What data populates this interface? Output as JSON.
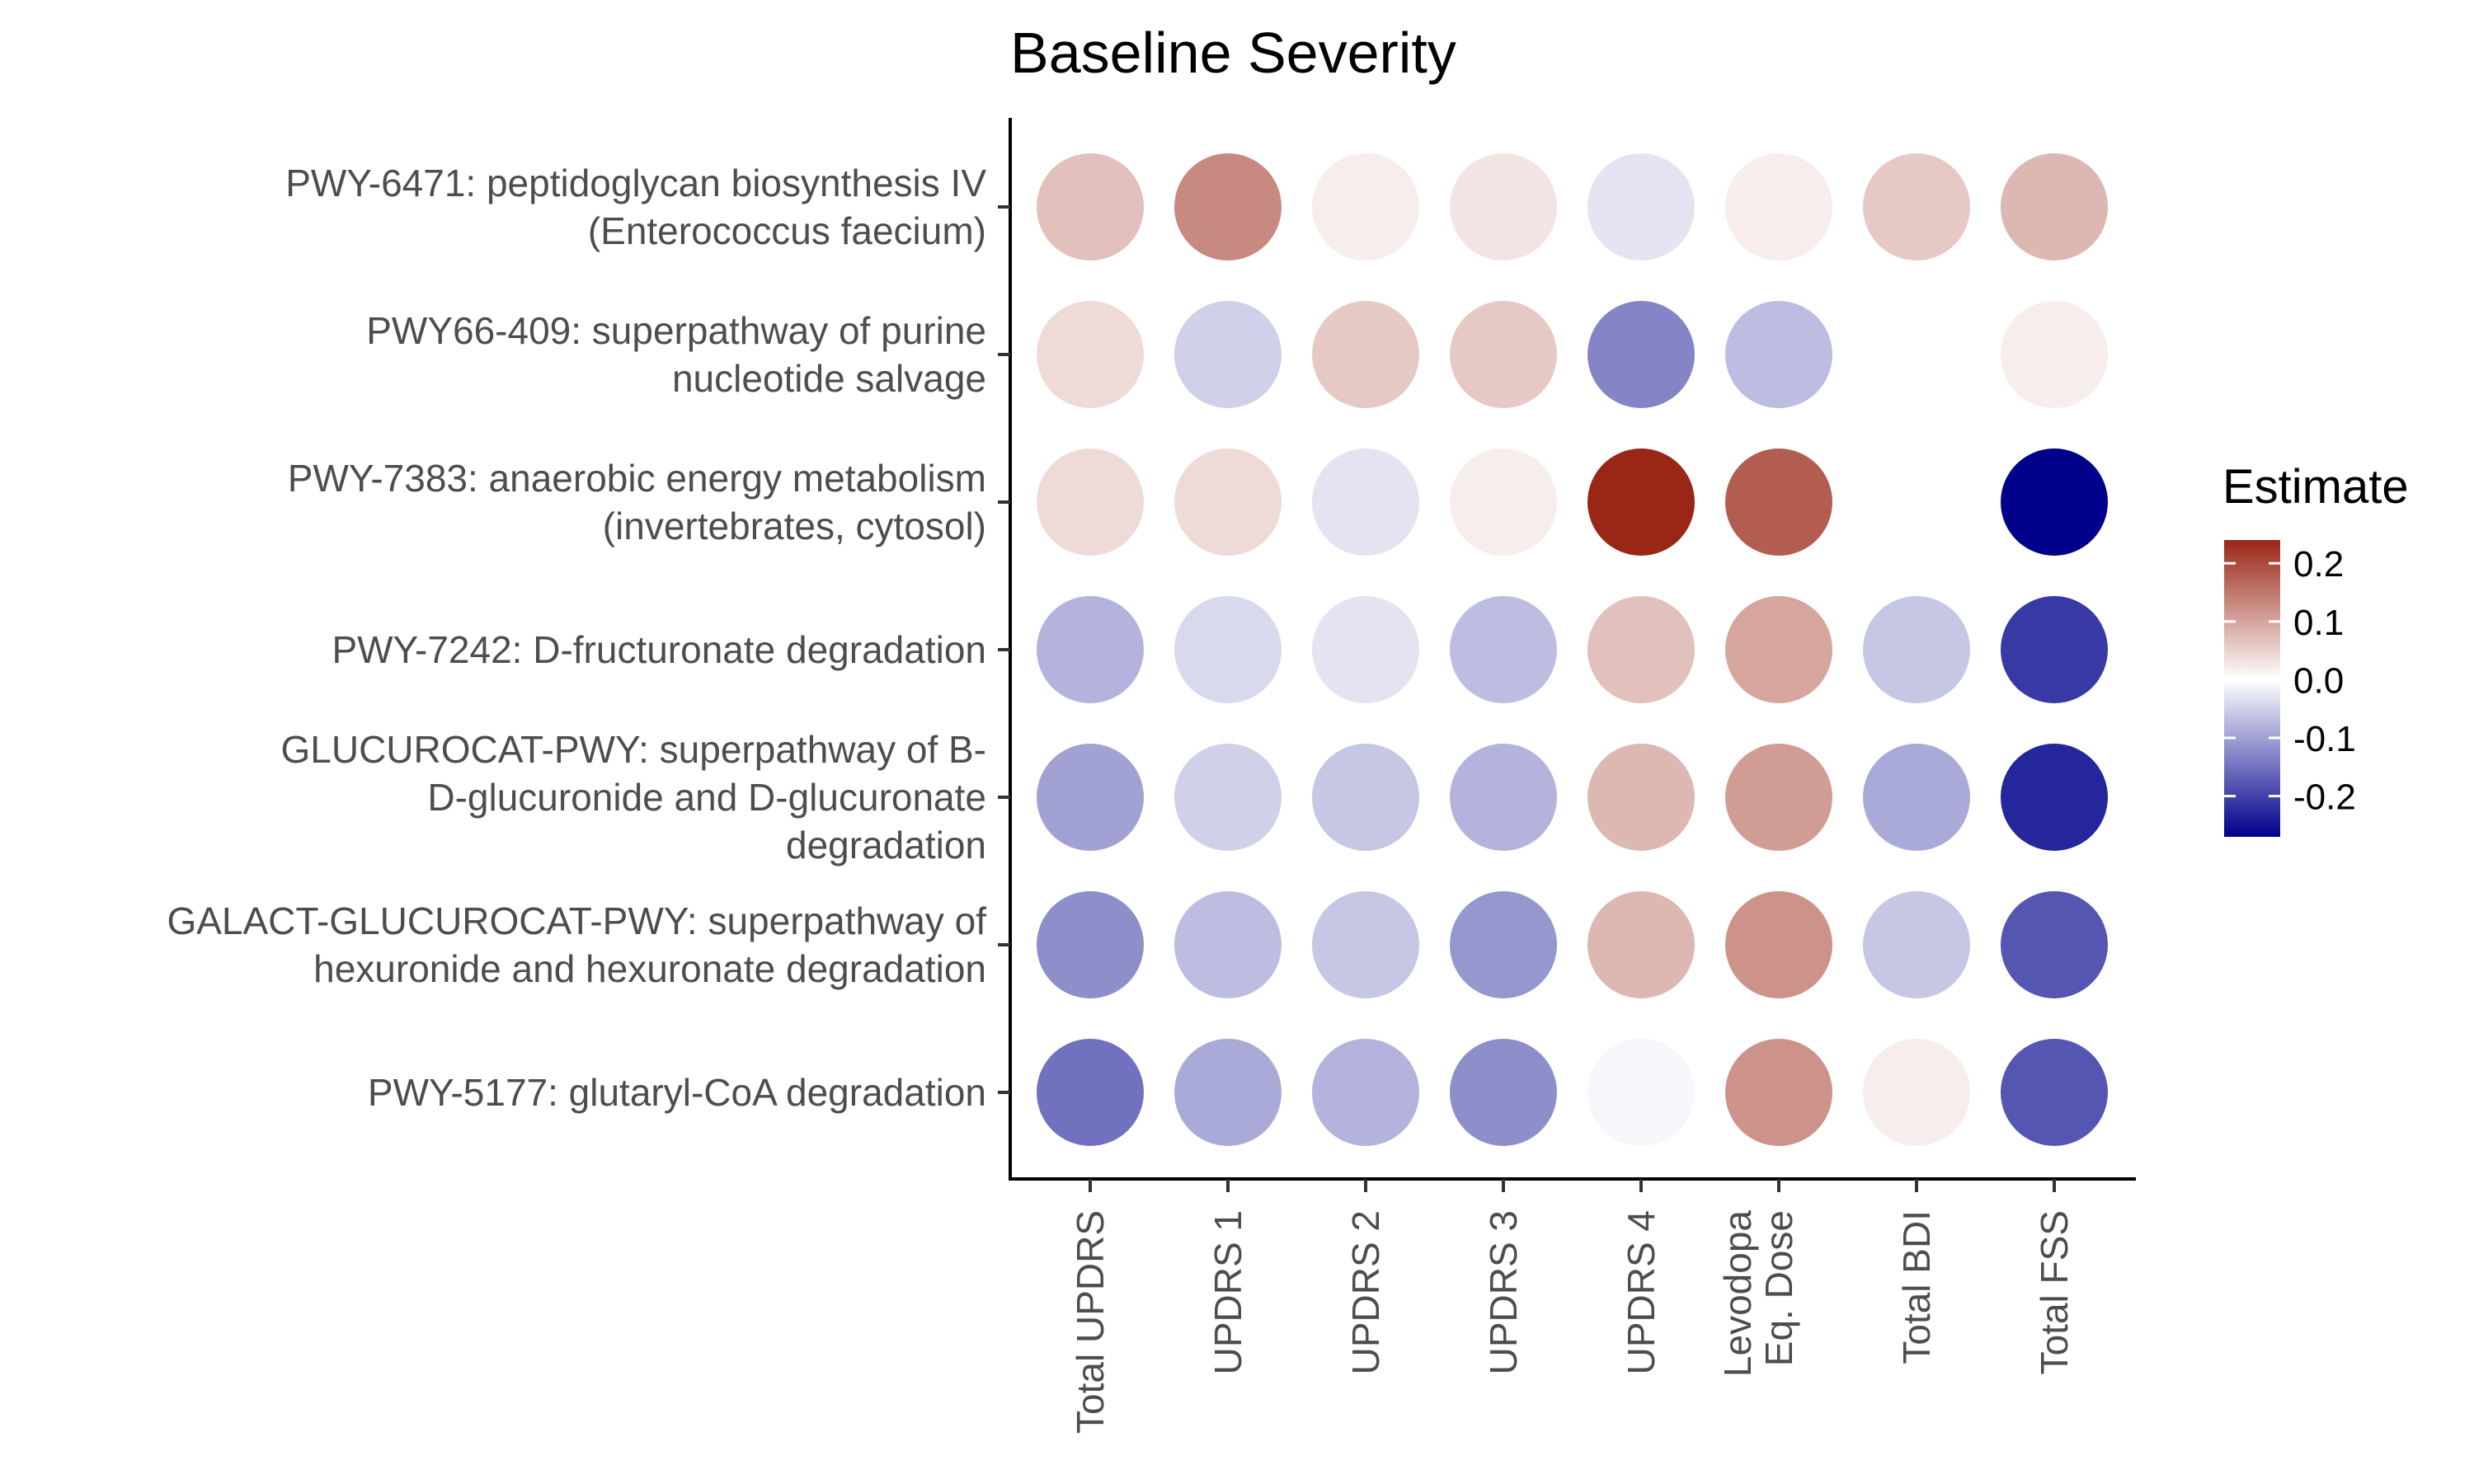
{
  "chart_data": {
    "type": "heatmap",
    "title": "Baseline Severity",
    "xlabel": "",
    "ylabel": "",
    "grid": false,
    "legend_position": "right",
    "categories": [
      [
        "Total UPDRS"
      ],
      [
        "UPDRS 1"
      ],
      [
        "UPDRS 2"
      ],
      [
        "UPDRS 3"
      ],
      [
        "UPDRS 4"
      ],
      [
        "Levodopa",
        "Eq. Dose"
      ],
      [
        "Total BDI"
      ],
      [
        "Total FSS"
      ]
    ],
    "rows": [
      {
        "lines": [
          "PWY-6471: peptidoglycan biosynthesis IV",
          "(Enterococcus faecium)"
        ],
        "values": [
          0.07,
          0.13,
          0.02,
          0.03,
          -0.03,
          0.02,
          0.06,
          0.08
        ]
      },
      {
        "lines": [
          "PWY66-409: superpathway of purine",
          "nucleotide salvage"
        ],
        "values": [
          0.04,
          -0.05,
          0.06,
          0.06,
          -0.13,
          -0.07,
          null,
          0.02
        ]
      },
      {
        "lines": [
          "PWY-7383: anaerobic energy metabolism",
          "(invertebrates, cytosol)"
        ],
        "values": [
          0.04,
          0.04,
          -0.03,
          0.02,
          0.24,
          0.18,
          0.0,
          -0.27
        ]
      },
      {
        "lines": [
          "PWY-7242: D-fructuronate degradation"
        ],
        "values": [
          -0.08,
          -0.04,
          -0.03,
          -0.07,
          0.07,
          0.1,
          -0.06,
          -0.21
        ]
      },
      {
        "lines": [
          "GLUCUROCAT-PWY: superpathway of B-",
          "D-glucuronide and D-glucuronate",
          "degradation"
        ],
        "values": [
          -0.1,
          -0.05,
          -0.06,
          -0.08,
          0.08,
          0.11,
          -0.09,
          -0.23
        ]
      },
      {
        "lines": [
          "GALACT-GLUCUROCAT-PWY: superpathway of",
          "hexuronide and hexuronate degradation"
        ],
        "values": [
          -0.12,
          -0.07,
          -0.06,
          -0.11,
          0.08,
          0.12,
          -0.06,
          -0.18
        ]
      },
      {
        "lines": [
          "PWY-5177: glutaryl-CoA degradation"
        ],
        "values": [
          -0.15,
          -0.09,
          -0.08,
          -0.12,
          -0.01,
          0.12,
          0.02,
          -0.18
        ]
      }
    ],
    "legend": {
      "title": "Estimate",
      "ticks": [
        0.2,
        0.1,
        0.0,
        -0.1,
        -0.2
      ],
      "tick_labels": [
        "0.2",
        "0.1",
        "0.0",
        "-0.1",
        "-0.2"
      ],
      "range": [
        -0.27,
        0.24
      ],
      "colors": {
        "high": "#9a2616",
        "mid": "#ffffff",
        "low": "#00008b"
      }
    }
  }
}
